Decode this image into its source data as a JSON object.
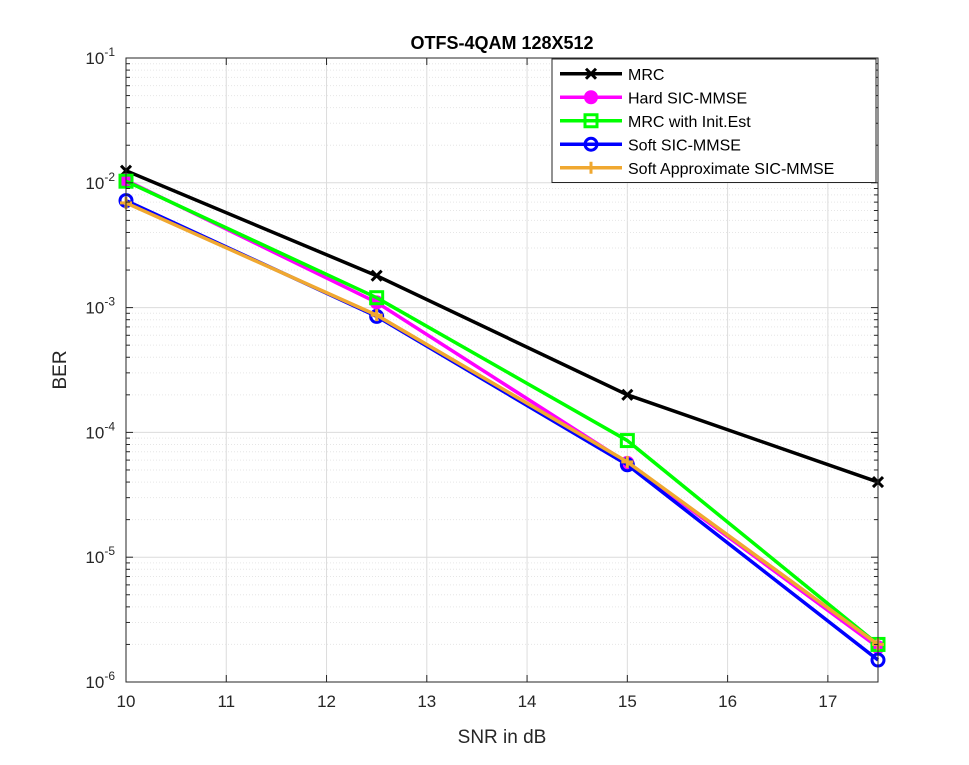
{
  "chart_data": {
    "type": "line",
    "title": "OTFS-4QAM 128X512",
    "xlabel": "SNR in dB",
    "ylabel": "BER",
    "xlim": [
      10,
      17.5
    ],
    "ylim": [
      1e-06,
      0.1
    ],
    "yscale": "log",
    "grid": true,
    "minor_grid": true,
    "legend_position": "top-right",
    "x": [
      10,
      12.5,
      15,
      17.5
    ],
    "x_ticks": [
      "10",
      "11",
      "12",
      "13",
      "14",
      "15",
      "16",
      "17"
    ],
    "y_ticks": [
      {
        "base": "10",
        "exp": "-6"
      },
      {
        "base": "10",
        "exp": "-5"
      },
      {
        "base": "10",
        "exp": "-4"
      },
      {
        "base": "10",
        "exp": "-3"
      },
      {
        "base": "10",
        "exp": "-2"
      },
      {
        "base": "10",
        "exp": "-1"
      }
    ],
    "series": [
      {
        "name": "MRC",
        "color": "#000000",
        "marker": "x",
        "values": [
          0.0125,
          0.0018,
          0.0002,
          4e-05
        ]
      },
      {
        "name": "Hard SIC-MMSE",
        "color": "#ff00ff",
        "marker": "circle-filled",
        "values": [
          0.0105,
          0.0011,
          5.7e-05,
          1.9e-06
        ]
      },
      {
        "name": "MRC with Init.Est",
        "color": "#00ff00",
        "marker": "square",
        "values": [
          0.0103,
          0.0012,
          8.6e-05,
          2e-06
        ]
      },
      {
        "name": "Soft SIC-MMSE",
        "color": "#0000ff",
        "marker": "circle",
        "values": [
          0.0072,
          0.00085,
          5.5e-05,
          1.5e-06
        ]
      },
      {
        "name": "Soft Approximate SIC-MMSE",
        "color": "#f0a830",
        "marker": "plus",
        "values": [
          0.0069,
          0.00087,
          5.8e-05,
          2e-06
        ]
      }
    ]
  }
}
